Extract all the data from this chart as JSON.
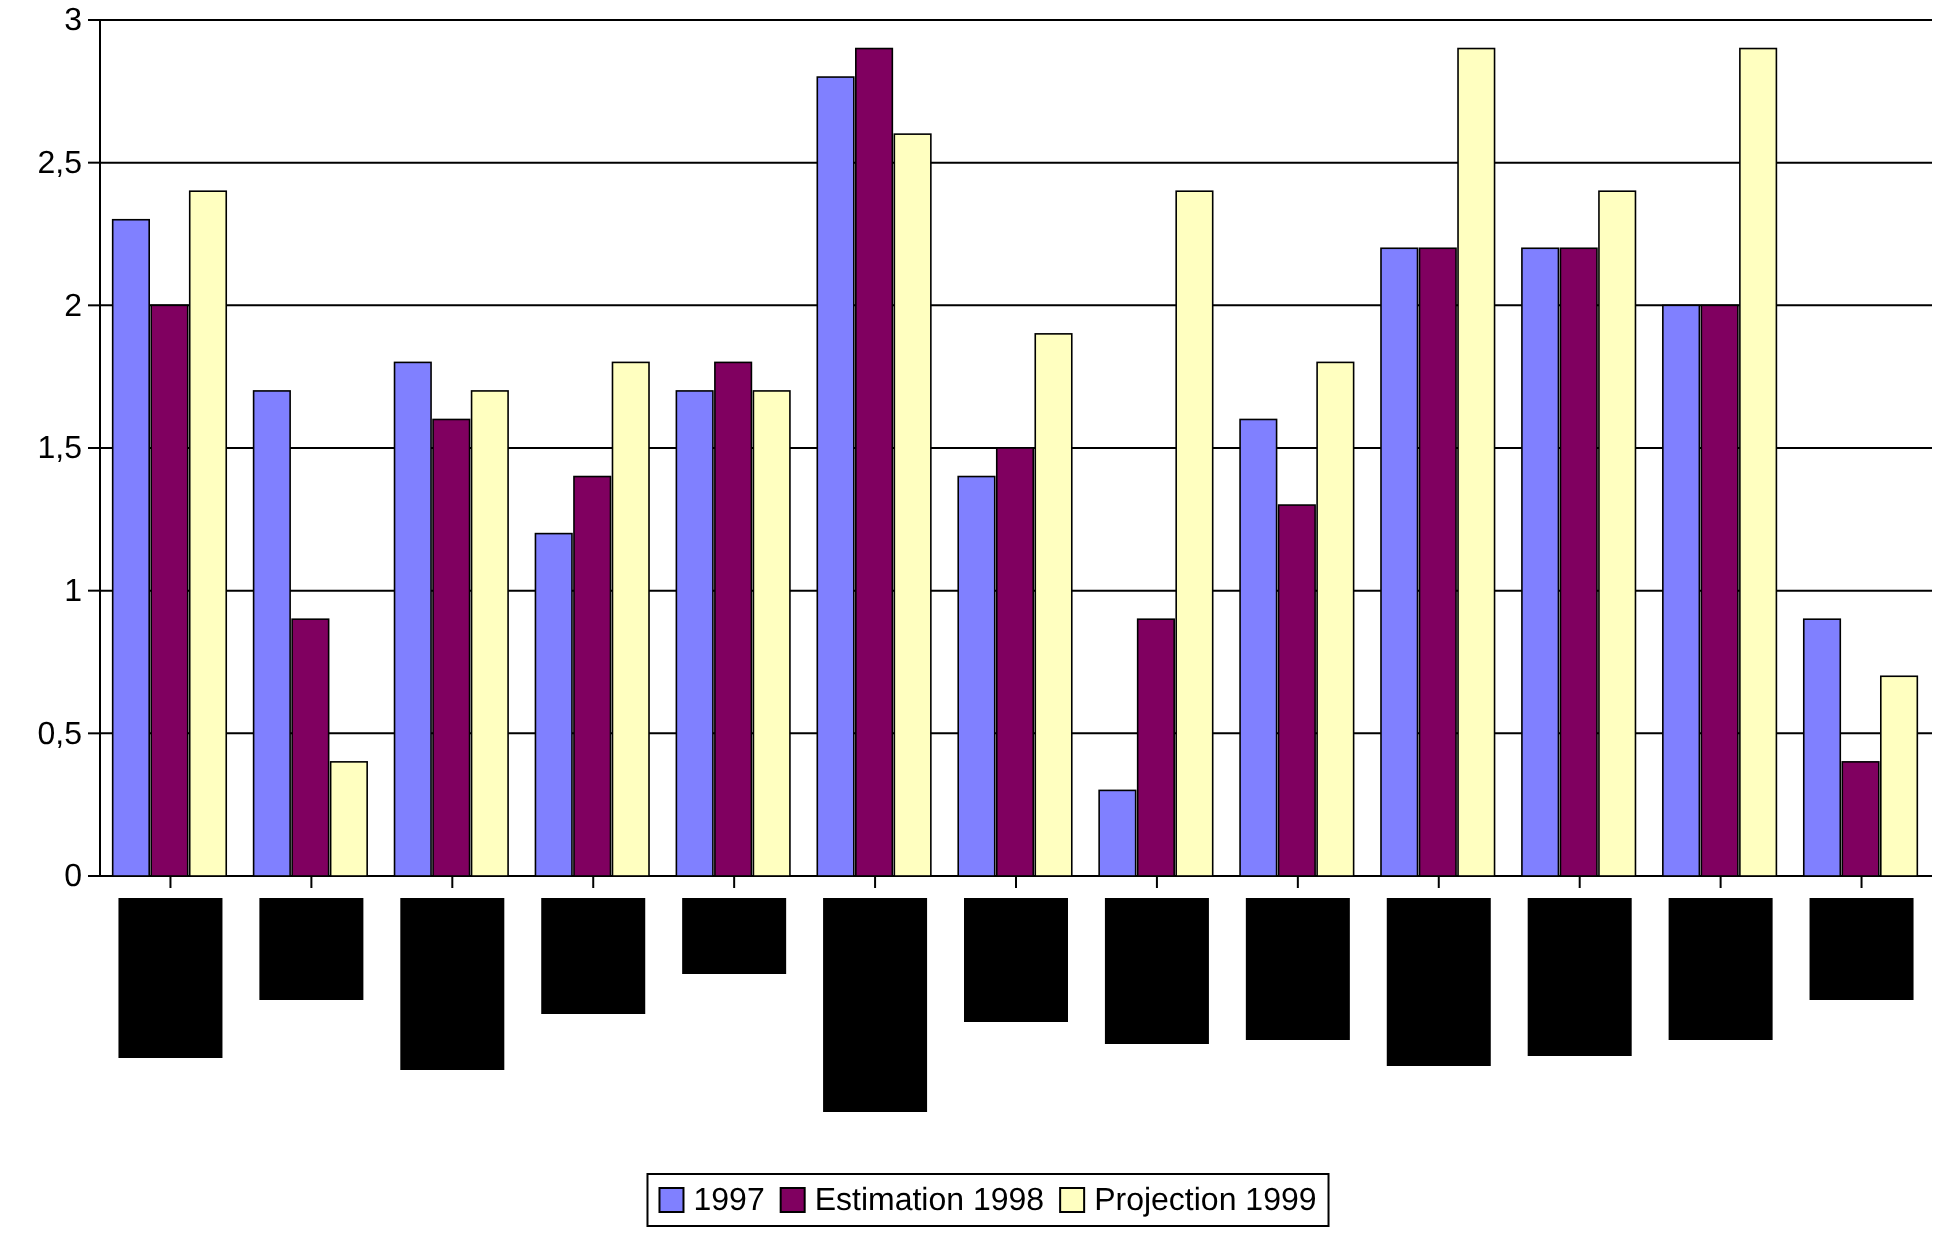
{
  "chart_data": {
    "type": "bar",
    "categories": [
      null,
      null,
      null,
      null,
      null,
      null,
      null,
      null,
      null,
      null,
      null,
      null,
      null
    ],
    "series": [
      {
        "name": "1997",
        "color": "#8080ff",
        "values": [
          2.3,
          1.7,
          1.8,
          1.2,
          1.7,
          2.8,
          1.4,
          0.3,
          1.6,
          2.2,
          2.2,
          2.0,
          0.9
        ]
      },
      {
        "name": "Estimation 1998",
        "color": "#800060",
        "values": [
          2.0,
          0.9,
          1.6,
          1.4,
          1.8,
          2.9,
          1.5,
          0.9,
          1.3,
          2.2,
          2.2,
          2.0,
          0.4
        ]
      },
      {
        "name": "Projection 1999",
        "color": "#ffffc0",
        "values": [
          2.4,
          0.4,
          1.7,
          1.8,
          1.7,
          2.6,
          1.9,
          2.4,
          1.8,
          2.9,
          2.4,
          2.9,
          0.7
        ]
      }
    ],
    "ylim": [
      0,
      3
    ],
    "yticks": [
      0,
      {
        "value": 0.5,
        "label": "0,5"
      },
      1,
      {
        "value": 1.5,
        "label": "1,5"
      },
      2,
      {
        "value": 2.5,
        "label": "2,5"
      },
      3
    ],
    "grid": "y",
    "legend": "bottom"
  }
}
